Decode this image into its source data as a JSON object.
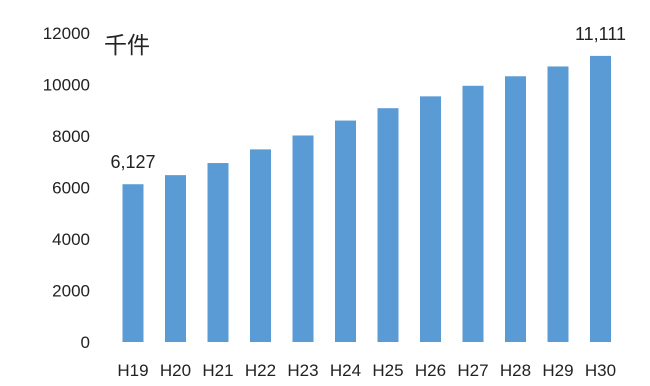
{
  "chart_data": {
    "type": "bar",
    "unit": "千件",
    "categories": [
      "H19",
      "H20",
      "H21",
      "H22",
      "H23",
      "H24",
      "H25",
      "H26",
      "H27",
      "H28",
      "H29",
      "H30"
    ],
    "values": [
      6127,
      6480,
      6950,
      7480,
      8020,
      8600,
      9080,
      9540,
      9950,
      10320,
      10700,
      11111
    ],
    "ylim": [
      0,
      12000
    ],
    "yticks": [
      0,
      2000,
      4000,
      6000,
      8000,
      10000,
      12000
    ],
    "grid": false,
    "bar_color": "#5b9bd5",
    "data_labels": [
      {
        "index": 0,
        "text": "6,127"
      },
      {
        "index": 11,
        "text": "11,111"
      }
    ]
  }
}
